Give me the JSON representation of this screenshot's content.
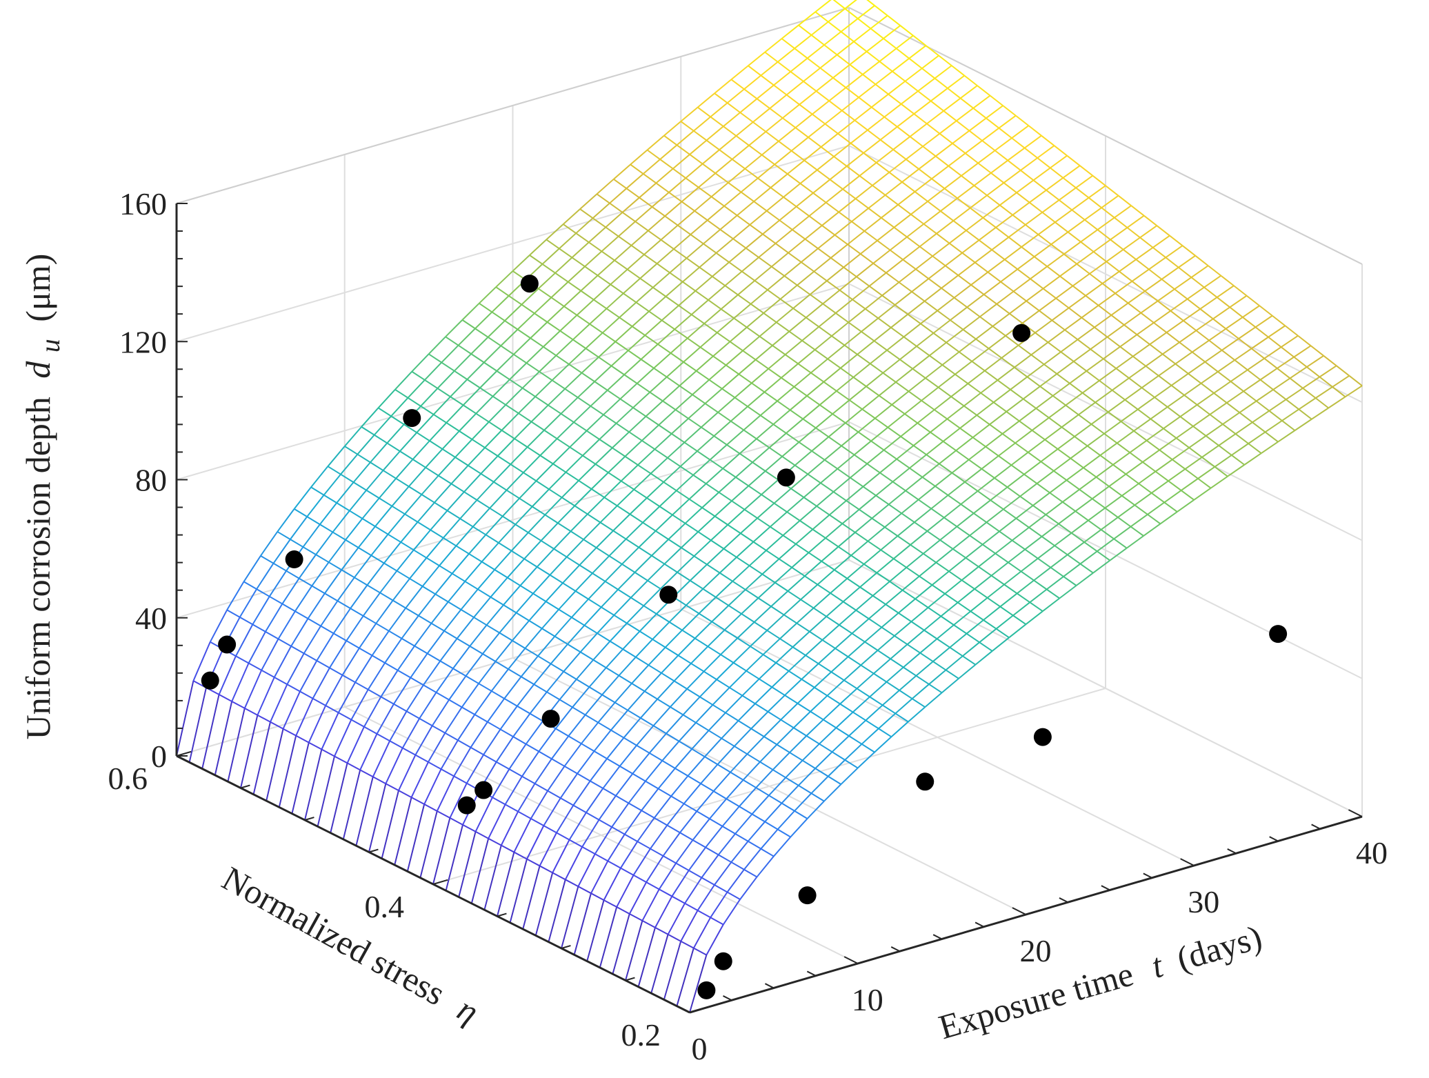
{
  "chart_data": {
    "type": "surface3d",
    "title": "",
    "xlabel": "Exposure time",
    "xlabel_symbol": "t",
    "xlabel_unit": "(days)",
    "ylabel": "Normalized stress",
    "ylabel_symbol": "η",
    "zlabel": "Uniform corrosion depth",
    "zlabel_symbol": "d",
    "zlabel_subscript": "u",
    "zlabel_unit": "(μm)",
    "xlim": [
      0,
      40
    ],
    "ylim": [
      0.2,
      0.6
    ],
    "zlim": [
      0,
      160
    ],
    "xticks": [
      0,
      10,
      20,
      30,
      40
    ],
    "yticks": [
      0.2,
      0.4,
      0.6
    ],
    "zticks": [
      0,
      40,
      80,
      120,
      160
    ],
    "xtick_labels": [
      "0",
      "10",
      "20",
      "30",
      "40"
    ],
    "ytick_labels": [
      "0.2",
      "0.4",
      "0.6"
    ],
    "ztick_labels": [
      "0",
      "40",
      "80",
      "120",
      "160"
    ],
    "grid": true,
    "colormap": [
      "#3e26a8",
      "#4a45e6",
      "#2f7cf0",
      "#1ba9d6",
      "#2cbe9a",
      "#7ec75a",
      "#d4bb3a",
      "#fdd827",
      "#f9fb0e"
    ],
    "surface_model": {
      "formula": "z = a * (1 + b*y) * x^n",
      "a": 12.7,
      "b": 1.0,
      "n": 0.57,
      "x_steps": 40,
      "y_steps": 40
    },
    "scatter_color": "#000000",
    "scatter_points": [
      {
        "t": 1,
        "eta": 0.2,
        "d": 5
      },
      {
        "t": 2,
        "eta": 0.2,
        "d": 12
      },
      {
        "t": 7,
        "eta": 0.2,
        "d": 24
      },
      {
        "t": 14,
        "eta": 0.2,
        "d": 47
      },
      {
        "t": 21,
        "eta": 0.2,
        "d": 50
      },
      {
        "t": 35,
        "eta": 0.2,
        "d": 60
      },
      {
        "t": 2,
        "eta": 0.4,
        "d": 20
      },
      {
        "t": 3,
        "eta": 0.4,
        "d": 23
      },
      {
        "t": 7,
        "eta": 0.4,
        "d": 38
      },
      {
        "t": 14,
        "eta": 0.4,
        "d": 64
      },
      {
        "t": 21,
        "eta": 0.4,
        "d": 88
      },
      {
        "t": 35,
        "eta": 0.4,
        "d": 110
      },
      {
        "t": 2,
        "eta": 0.6,
        "d": 19
      },
      {
        "t": 3,
        "eta": 0.6,
        "d": 28
      },
      {
        "t": 7,
        "eta": 0.6,
        "d": 47
      },
      {
        "t": 14,
        "eta": 0.6,
        "d": 78
      },
      {
        "t": 21,
        "eta": 0.6,
        "d": 107
      },
      {
        "t": 35,
        "eta": 0.6,
        "d": 172
      }
    ]
  }
}
